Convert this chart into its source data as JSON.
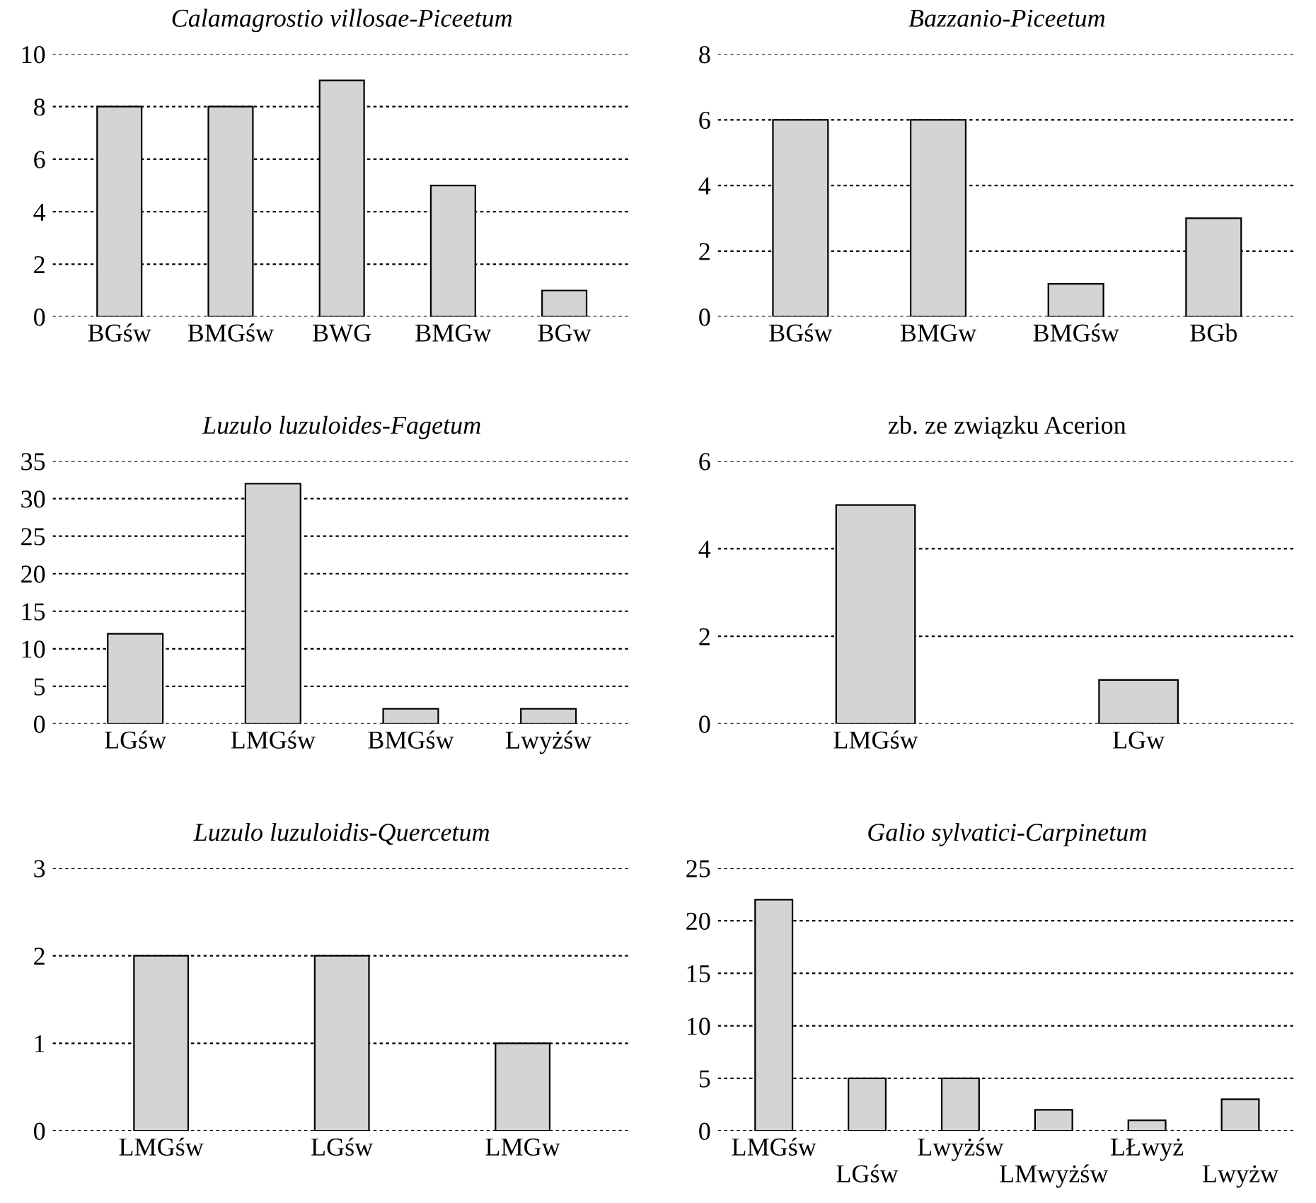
{
  "chart_data": [
    {
      "type": "bar",
      "title": "Calamagrostio villosae-Piceetum",
      "categories": [
        "BGśw",
        "BMGśw",
        "BWG",
        "BMGw",
        "BGw"
      ],
      "values": [
        8,
        8,
        9,
        5,
        1
      ],
      "color": "#d4d4d4",
      "ylim": [
        0,
        10
      ],
      "yticks": [
        0,
        2,
        4,
        6,
        8,
        10
      ],
      "grid": "y"
    },
    {
      "type": "bar",
      "title": "Bazzanio-Piceetum",
      "categories": [
        "BGśw",
        "BMGw",
        "BMGśw",
        "BGb"
      ],
      "values": [
        6,
        6,
        1,
        3
      ],
      "color": "#d4d4d4",
      "ylim": [
        0,
        8
      ],
      "yticks": [
        0,
        2,
        4,
        6,
        8
      ],
      "grid": "y"
    },
    {
      "type": "bar",
      "title": "Luzulo luzuloides-Fagetum",
      "categories": [
        "LGśw",
        "LMGśw",
        "BMGśw",
        "Lwyżśw"
      ],
      "values": [
        12,
        32,
        2,
        2
      ],
      "color": "#d4d4d4",
      "ylim": [
        0,
        35
      ],
      "yticks": [
        0,
        5,
        10,
        15,
        20,
        25,
        30,
        35
      ],
      "grid": "y"
    },
    {
      "type": "bar",
      "title": "zb. ze związku Acerion",
      "categories": [
        "LMGśw",
        "LGw"
      ],
      "values": [
        5,
        1
      ],
      "color": "#d4d4d4",
      "ylim": [
        0,
        6
      ],
      "yticks": [
        0,
        2,
        4,
        6
      ],
      "grid": "y"
    },
    {
      "type": "bar",
      "title": "Luzulo luzuloidis-Quercetum",
      "categories": [
        "LMGśw",
        "LGśw",
        "LMGw"
      ],
      "values": [
        2,
        2,
        1
      ],
      "color": "#d4d4d4",
      "ylim": [
        0,
        3
      ],
      "yticks": [
        0,
        1,
        2,
        3
      ],
      "grid": "y"
    },
    {
      "type": "bar",
      "title": "Galio sylvatici-Carpinetum",
      "categories": [
        "LMGśw",
        "LGśw",
        "Lwyżśw",
        "LMwyżśw",
        "LŁwyż",
        "Lwyżw"
      ],
      "values": [
        22,
        5,
        5,
        2,
        1,
        3
      ],
      "color": "#d4d4d4",
      "ylim": [
        0,
        25
      ],
      "yticks": [
        0,
        5,
        10,
        15,
        20,
        25
      ],
      "grid": "y"
    }
  ]
}
